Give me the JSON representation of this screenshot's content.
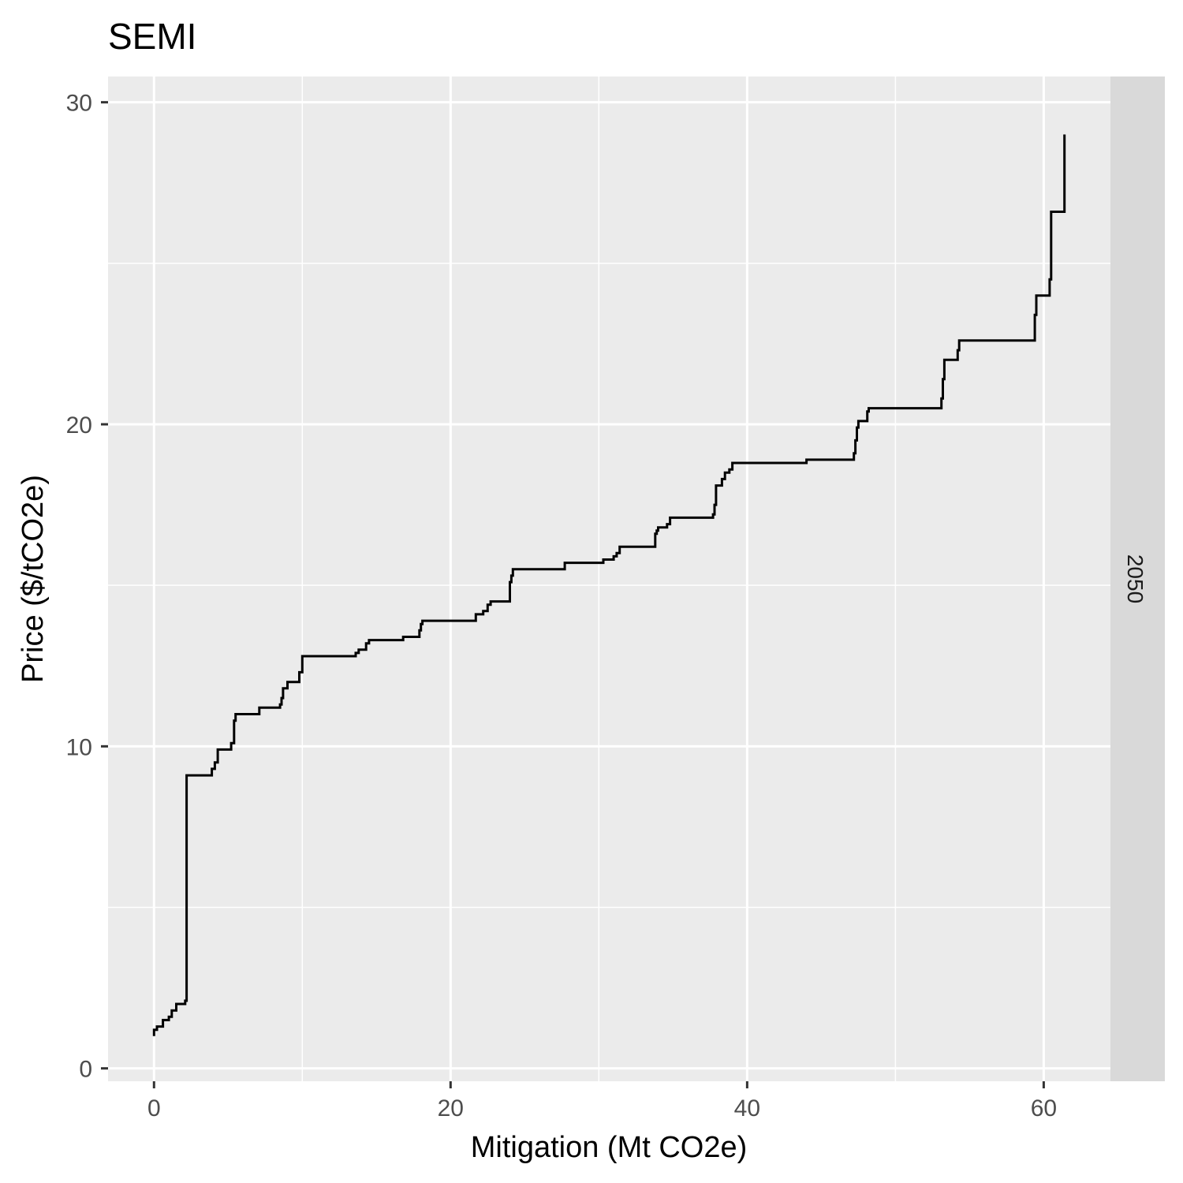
{
  "chart_data": {
    "type": "line",
    "title": "SEMI",
    "xlabel": "Mitigation (Mt CO2e)",
    "ylabel": "Price ($/tCO2e)",
    "facet_label": "2050",
    "xlim": [
      -3.1,
      64.5
    ],
    "ylim": [
      -0.4,
      30.8
    ],
    "x_ticks": [
      0,
      20,
      40,
      60
    ],
    "x_tick_labels": [
      "0",
      "20",
      "40",
      "60"
    ],
    "y_ticks": [
      0,
      10,
      20,
      30
    ],
    "y_tick_labels": [
      "0",
      "10",
      "20",
      "30"
    ],
    "x_minor_gridlines": [
      10,
      30,
      50
    ],
    "y_minor_gridlines": [
      5,
      15,
      25
    ],
    "grid": true,
    "colors": {
      "panel": "#ebebeb",
      "strip": "#d9d9d9",
      "grid": "#ffffff",
      "line": "#000000",
      "tick_text": "#4d4d4d",
      "title_text": "#000000"
    },
    "series": [
      {
        "x": [
          0,
          0,
          0.2,
          0.2,
          0.6,
          0.6,
          1.0,
          1.0,
          1.2,
          1.2,
          1.5,
          1.5,
          2.1,
          2.1,
          2.2,
          2.2,
          3.9,
          3.9,
          4.1,
          4.1,
          4.3,
          4.3,
          5.2,
          5.2,
          5.4,
          5.4,
          5.5,
          5.5,
          7.1,
          7.1,
          8.5,
          8.5,
          8.6,
          8.6,
          8.7,
          8.7,
          9.0,
          9.0,
          9.8,
          9.8,
          10.0,
          10.0,
          13.6,
          13.6,
          13.8,
          13.8,
          14.3,
          14.3,
          14.5,
          14.5,
          16.8,
          16.8,
          17.9,
          17.9,
          18.0,
          18.0,
          18.1,
          18.1,
          21.7,
          21.7,
          22.2,
          22.2,
          22.5,
          22.5,
          22.7,
          22.7,
          24.0,
          24.0,
          24.1,
          24.1,
          24.2,
          24.2,
          27.7,
          27.7,
          30.3,
          30.3,
          31.0,
          31.0,
          31.2,
          31.2,
          31.4,
          31.4,
          33.8,
          33.8,
          33.9,
          33.9,
          34.0,
          34.0,
          34.6,
          34.6,
          34.8,
          34.8,
          37.7,
          37.7,
          37.8,
          37.8,
          37.9,
          37.9,
          38.3,
          38.3,
          38.5,
          38.5,
          38.8,
          38.8,
          39.0,
          39.0,
          44.0,
          44.0,
          47.2,
          47.2,
          47.3,
          47.3,
          47.4,
          47.4,
          47.5,
          47.5,
          48.1,
          48.1,
          48.2,
          48.2,
          53.1,
          53.1,
          53.2,
          53.2,
          53.3,
          53.3,
          54.2,
          54.2,
          54.3,
          54.3,
          59.4,
          59.4,
          59.5,
          59.5,
          60.4,
          60.4,
          60.5,
          60.5,
          61.4,
          61.4
        ],
        "y": [
          1.0,
          1.2,
          1.2,
          1.3,
          1.3,
          1.5,
          1.5,
          1.6,
          1.6,
          1.8,
          1.8,
          2.0,
          2.0,
          2.1,
          2.1,
          9.1,
          9.1,
          9.3,
          9.3,
          9.5,
          9.5,
          9.9,
          9.9,
          10.1,
          10.1,
          10.8,
          10.8,
          11.0,
          11.0,
          11.2,
          11.2,
          11.3,
          11.3,
          11.5,
          11.5,
          11.8,
          11.8,
          12.0,
          12.0,
          12.3,
          12.3,
          12.8,
          12.8,
          12.9,
          12.9,
          13.0,
          13.0,
          13.2,
          13.2,
          13.3,
          13.3,
          13.4,
          13.4,
          13.6,
          13.6,
          13.8,
          13.8,
          13.9,
          13.9,
          14.1,
          14.1,
          14.2,
          14.2,
          14.4,
          14.4,
          14.5,
          14.5,
          15.1,
          15.1,
          15.3,
          15.3,
          15.5,
          15.5,
          15.7,
          15.7,
          15.8,
          15.8,
          15.9,
          15.9,
          16.0,
          16.0,
          16.2,
          16.2,
          16.6,
          16.6,
          16.7,
          16.7,
          16.8,
          16.8,
          16.9,
          16.9,
          17.1,
          17.1,
          17.2,
          17.2,
          17.5,
          17.5,
          18.1,
          18.1,
          18.3,
          18.3,
          18.5,
          18.5,
          18.6,
          18.6,
          18.8,
          18.8,
          18.9,
          18.9,
          19.1,
          19.1,
          19.5,
          19.5,
          19.9,
          19.9,
          20.1,
          20.1,
          20.4,
          20.4,
          20.5,
          20.5,
          20.8,
          20.8,
          21.4,
          21.4,
          22.0,
          22.0,
          22.3,
          22.3,
          22.6,
          22.6,
          23.4,
          23.4,
          24.0,
          24.0,
          24.5,
          24.5,
          26.6,
          26.6,
          29.0
        ]
      }
    ]
  }
}
